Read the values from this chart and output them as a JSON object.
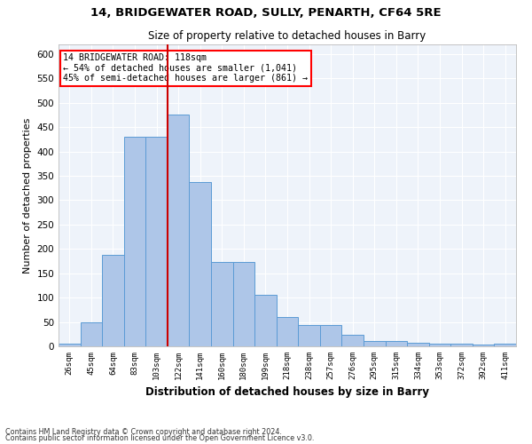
{
  "title1": "14, BRIDGEWATER ROAD, SULLY, PENARTH, CF64 5RE",
  "title2": "Size of property relative to detached houses in Barry",
  "xlabel": "Distribution of detached houses by size in Barry",
  "ylabel": "Number of detached properties",
  "categories": [
    "26sqm",
    "45sqm",
    "64sqm",
    "83sqm",
    "103sqm",
    "122sqm",
    "141sqm",
    "160sqm",
    "180sqm",
    "199sqm",
    "218sqm",
    "238sqm",
    "257sqm",
    "276sqm",
    "295sqm",
    "315sqm",
    "334sqm",
    "353sqm",
    "372sqm",
    "392sqm",
    "411sqm"
  ],
  "values": [
    5,
    50,
    188,
    430,
    430,
    476,
    338,
    174,
    174,
    106,
    60,
    44,
    44,
    24,
    11,
    11,
    7,
    5,
    5,
    3,
    5
  ],
  "bar_color": "#aec6e8",
  "bar_edge_color": "#5b9bd5",
  "bg_color": "#eef3fa",
  "grid_color": "#ffffff",
  "annotation_line1": "14 BRIDGEWATER ROAD: 118sqm",
  "annotation_line2": "← 54% of detached houses are smaller (1,041)",
  "annotation_line3": "45% of semi-detached houses are larger (861) →",
  "vline_x_index": 4.5,
  "vline_color": "#cc0000",
  "footer1": "Contains HM Land Registry data © Crown copyright and database right 2024.",
  "footer2": "Contains public sector information licensed under the Open Government Licence v3.0.",
  "ylim": [
    0,
    620
  ],
  "yticks": [
    0,
    50,
    100,
    150,
    200,
    250,
    300,
    350,
    400,
    450,
    500,
    550,
    600
  ]
}
